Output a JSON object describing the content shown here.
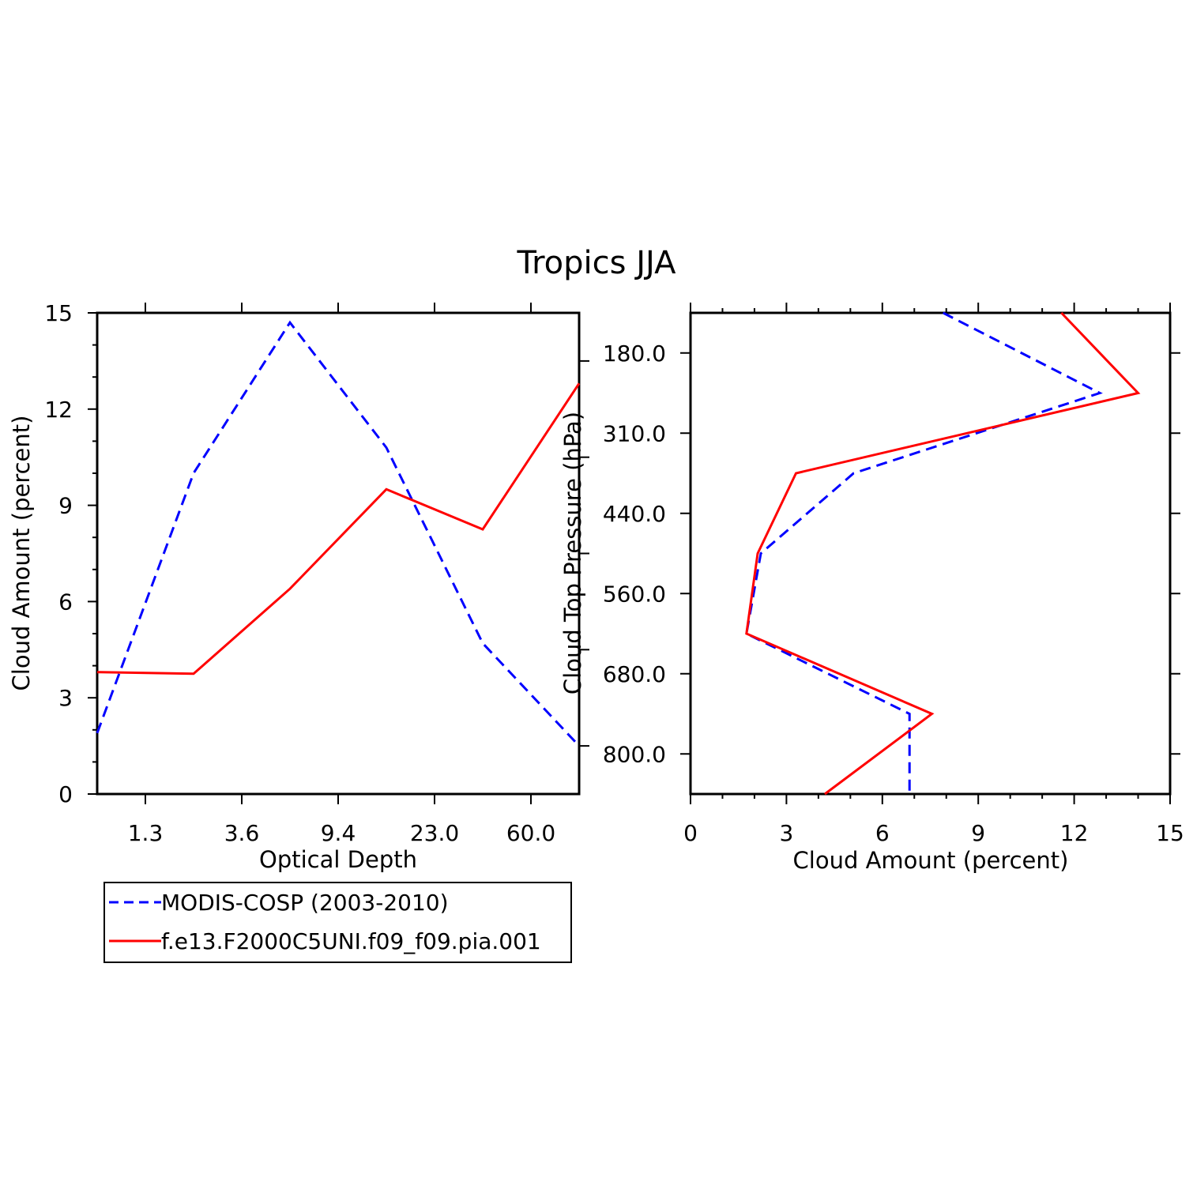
{
  "title": "Tropics JJA",
  "colors": {
    "modis": "#0000ff",
    "model": "#ff0000",
    "axis": "#000000"
  },
  "chart_data": [
    {
      "type": "line",
      "xlabel": "Optical Depth",
      "ylabel": "Cloud Amount (percent)",
      "x_tick_labels": [
        "1.3",
        "3.6",
        "9.4",
        "23.0",
        "60.0"
      ],
      "y_ticks": [
        0,
        3,
        6,
        9,
        12,
        15
      ],
      "ylim": [
        0,
        15
      ],
      "bins": 5,
      "series": [
        {
          "name": "MODIS-COSP (2003-2010)",
          "style": "dashed",
          "values": [
            1.9,
            10.0,
            14.7,
            10.8,
            4.7,
            1.5
          ]
        },
        {
          "name": "f.e13.F2000C5UNI.f09_f09.pia.001",
          "style": "solid",
          "values": [
            3.8,
            3.75,
            6.4,
            9.5,
            8.25,
            12.8
          ]
        }
      ]
    },
    {
      "type": "line",
      "xlabel": "Cloud Amount (percent)",
      "ylabel": "Cloud Top Pressure (hPa)",
      "y_tick_labels": [
        "180.0",
        "310.0",
        "440.0",
        "560.0",
        "680.0",
        "800.0"
      ],
      "x_ticks": [
        0,
        3,
        6,
        9,
        12,
        15
      ],
      "xlim": [
        0,
        15
      ],
      "bins": 6,
      "series": [
        {
          "name": "MODIS-COSP (2003-2010)",
          "style": "dashed",
          "values": [
            7.9,
            12.8,
            5.1,
            2.2,
            1.75,
            6.85,
            6.85
          ]
        },
        {
          "name": "f.e13.F2000C5UNI.f09_f09.pia.001",
          "style": "solid",
          "values": [
            11.6,
            14.0,
            3.3,
            2.1,
            1.75,
            7.55,
            4.2
          ]
        }
      ]
    }
  ],
  "legend": {
    "items": [
      {
        "label": "MODIS-COSP (2003-2010)",
        "style": "dashed"
      },
      {
        "label": "f.e13.F2000C5UNI.f09_f09.pia.001",
        "style": "solid"
      }
    ]
  }
}
